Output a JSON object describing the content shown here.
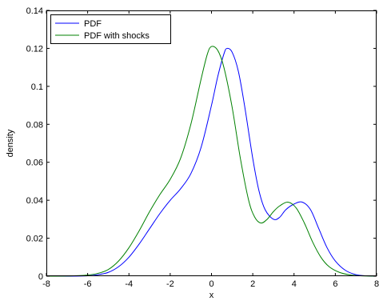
{
  "chart_data": {
    "type": "line",
    "xlabel": "x",
    "ylabel": "density",
    "xlim": [
      -8,
      8
    ],
    "ylim": [
      0,
      0.14
    ],
    "xticks": [
      -8,
      -6,
      -4,
      -2,
      0,
      2,
      4,
      6,
      8
    ],
    "yticks": [
      0,
      0.02,
      0.04,
      0.06,
      0.08,
      0.1,
      0.12,
      0.14
    ],
    "xtick_labels": [
      "-8",
      "-6",
      "-4",
      "-2",
      "0",
      "2",
      "4",
      "6",
      "8"
    ],
    "ytick_labels": [
      "0",
      "0.02",
      "0.04",
      "0.06",
      "0.08",
      "0.1",
      "0.12",
      "0.14"
    ],
    "grid": false,
    "legend_position": "top-left",
    "series": [
      {
        "name": "PDF",
        "color": "#0000ff",
        "x": [
          -8,
          -7,
          -6,
          -5.5,
          -5,
          -4.5,
          -4,
          -3.5,
          -3,
          -2.5,
          -2,
          -1.5,
          -1,
          -0.5,
          0,
          0.3,
          0.6,
          0.75,
          1,
          1.3,
          1.6,
          2,
          2.3,
          2.6,
          3,
          3.3,
          3.6,
          4,
          4.4,
          4.8,
          5.2,
          5.6,
          6,
          6.5,
          7,
          7.5,
          8
        ],
        "y": [
          0,
          0,
          0.0002,
          0.0008,
          0.002,
          0.005,
          0.01,
          0.017,
          0.025,
          0.033,
          0.04,
          0.046,
          0.054,
          0.068,
          0.09,
          0.105,
          0.117,
          0.12,
          0.118,
          0.108,
          0.09,
          0.062,
          0.045,
          0.035,
          0.03,
          0.031,
          0.035,
          0.038,
          0.039,
          0.035,
          0.025,
          0.015,
          0.008,
          0.003,
          0.0008,
          0.0002,
          0
        ]
      },
      {
        "name": "PDF with shocks",
        "color": "#008000",
        "x": [
          -8,
          -7,
          -6,
          -5.5,
          -5,
          -4.5,
          -4,
          -3.5,
          -3,
          -2.5,
          -2,
          -1.5,
          -1,
          -0.5,
          -0.2,
          0,
          0.3,
          0.6,
          1,
          1.4,
          1.8,
          2.1,
          2.4,
          2.7,
          3,
          3.3,
          3.7,
          4.1,
          4.5,
          4.9,
          5.3,
          5.7,
          6.2,
          6.7,
          7.2,
          8
        ],
        "y": [
          0,
          0.0001,
          0.0006,
          0.0015,
          0.0035,
          0.008,
          0.015,
          0.024,
          0.034,
          0.043,
          0.051,
          0.062,
          0.08,
          0.104,
          0.117,
          0.121,
          0.119,
          0.11,
          0.089,
          0.062,
          0.04,
          0.031,
          0.028,
          0.03,
          0.034,
          0.037,
          0.039,
          0.036,
          0.028,
          0.018,
          0.01,
          0.005,
          0.002,
          0.0007,
          0.0002,
          0
        ]
      }
    ]
  }
}
